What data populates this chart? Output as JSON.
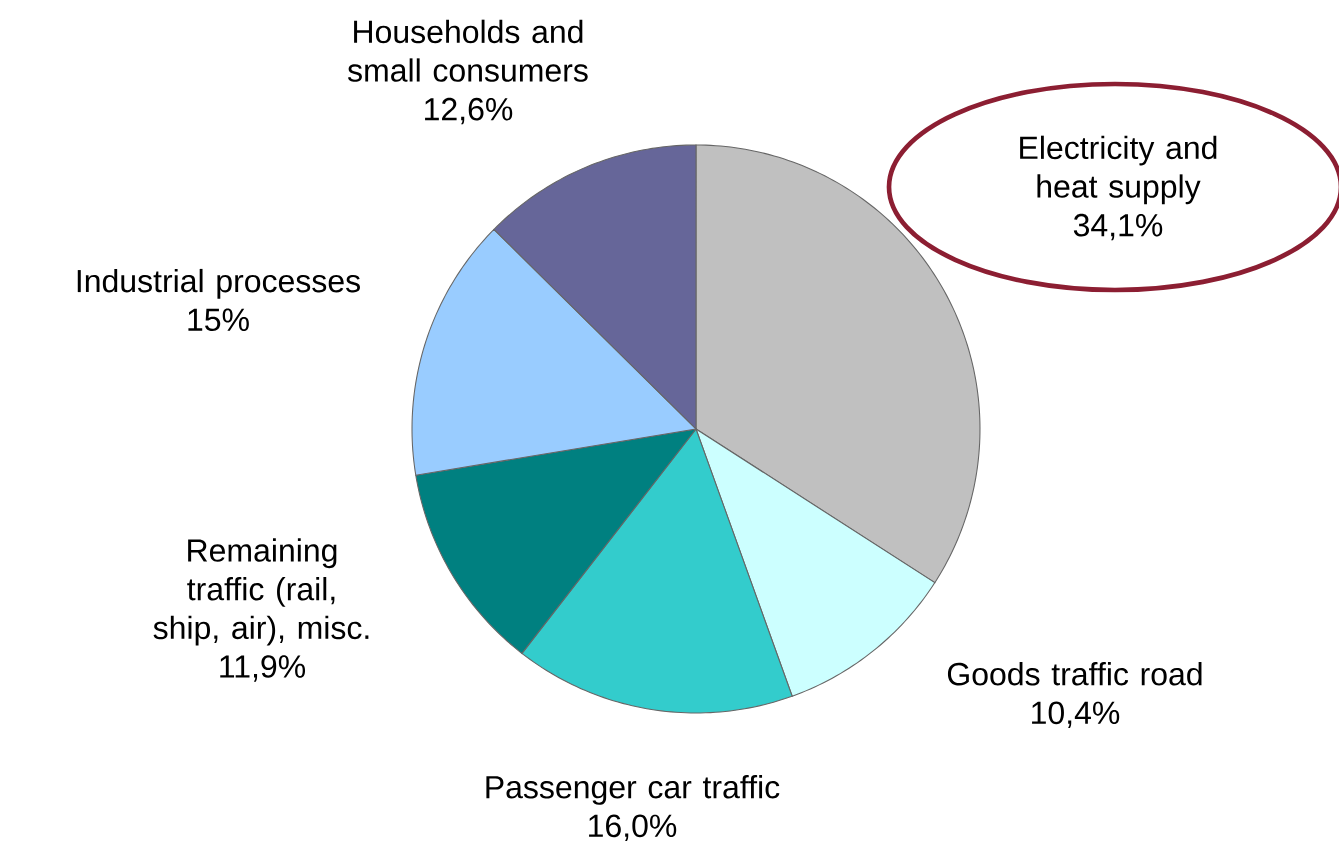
{
  "chart_data": {
    "type": "pie",
    "categories": [
      "Electricity and heat supply",
      "Goods traffic road",
      "Passenger car traffic",
      "Remaining traffic (rail, ship, air), misc.",
      "Industrial processes",
      "Households and small consumers"
    ],
    "values": [
      34.1,
      10.4,
      16.0,
      11.9,
      15,
      12.6
    ],
    "value_labels": [
      "34,1%",
      "10,4%",
      "16,0%",
      "11,9%",
      "15%",
      "12,6%"
    ],
    "colors": [
      "#c0c0c0",
      "#ccffff",
      "#33cccc",
      "#008080",
      "#99ccff",
      "#666699"
    ]
  }
}
